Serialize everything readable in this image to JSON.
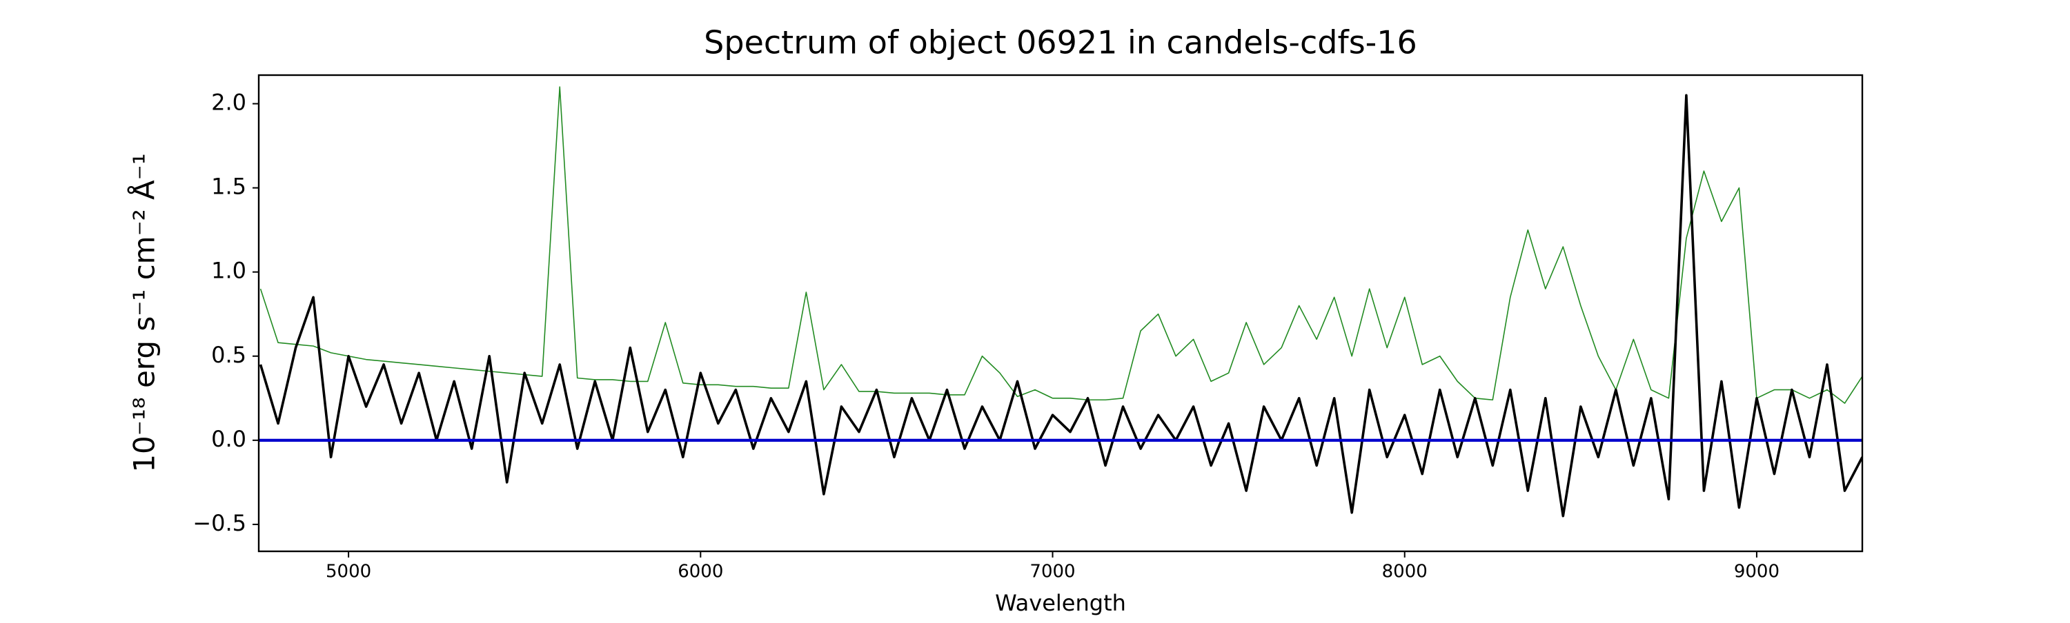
{
  "chart_data": {
    "type": "line",
    "title": "Spectrum of object 06921 in candels-cdfs-16",
    "xlabel": "Wavelength",
    "ylabel": "10⁻¹⁸ erg s⁻¹ cm⁻² Å⁻¹",
    "x": [
      4750,
      4800,
      4850,
      4900,
      4950,
      5000,
      5050,
      5100,
      5150,
      5200,
      5250,
      5300,
      5350,
      5400,
      5450,
      5500,
      5550,
      5600,
      5650,
      5700,
      5750,
      5800,
      5850,
      5900,
      5950,
      6000,
      6050,
      6100,
      6150,
      6200,
      6250,
      6300,
      6350,
      6400,
      6450,
      6500,
      6550,
      6600,
      6650,
      6700,
      6750,
      6800,
      6850,
      6900,
      6950,
      7000,
      7050,
      7100,
      7150,
      7200,
      7250,
      7300,
      7350,
      7400,
      7450,
      7500,
      7550,
      7600,
      7650,
      7700,
      7750,
      7800,
      7850,
      7900,
      7950,
      8000,
      8050,
      8100,
      8150,
      8200,
      8250,
      8300,
      8350,
      8400,
      8450,
      8500,
      8550,
      8600,
      8650,
      8700,
      8750,
      8800,
      8850,
      8900,
      8950,
      9000,
      9050,
      9100,
      9150,
      9200,
      9250,
      9300
    ],
    "series": [
      {
        "color": "#228b22",
        "width": 1.6,
        "values": [
          0.9,
          0.58,
          0.57,
          0.56,
          0.52,
          0.5,
          0.48,
          0.47,
          0.46,
          0.45,
          0.44,
          0.43,
          0.42,
          0.41,
          0.4,
          0.39,
          0.38,
          2.1,
          0.37,
          0.36,
          0.36,
          0.35,
          0.35,
          0.7,
          0.34,
          0.33,
          0.33,
          0.32,
          0.32,
          0.31,
          0.31,
          0.88,
          0.3,
          0.45,
          0.29,
          0.29,
          0.28,
          0.28,
          0.28,
          0.27,
          0.27,
          0.5,
          0.4,
          0.26,
          0.3,
          0.25,
          0.25,
          0.24,
          0.24,
          0.25,
          0.65,
          0.75,
          0.5,
          0.6,
          0.35,
          0.4,
          0.7,
          0.45,
          0.55,
          0.8,
          0.6,
          0.85,
          0.5,
          0.9,
          0.55,
          0.85,
          0.45,
          0.5,
          0.35,
          0.25,
          0.24,
          0.85,
          1.25,
          0.9,
          1.15,
          0.8,
          0.5,
          0.3,
          0.6,
          0.3,
          0.25,
          1.2,
          1.6,
          1.3,
          1.5,
          0.25,
          0.3,
          0.3,
          0.25,
          0.3,
          0.22,
          0.38
        ]
      },
      {
        "color": "#000000",
        "width": 3.6,
        "values": [
          0.45,
          0.1,
          0.55,
          0.85,
          -0.1,
          0.5,
          0.2,
          0.45,
          0.1,
          0.4,
          0.0,
          0.35,
          -0.05,
          0.5,
          -0.25,
          0.4,
          0.1,
          0.45,
          -0.05,
          0.35,
          0.0,
          0.55,
          0.05,
          0.3,
          -0.1,
          0.4,
          0.1,
          0.3,
          -0.05,
          0.25,
          0.05,
          0.35,
          -0.32,
          0.2,
          0.05,
          0.3,
          -0.1,
          0.25,
          0.0,
          0.3,
          -0.05,
          0.2,
          0.0,
          0.35,
          -0.05,
          0.15,
          0.05,
          0.25,
          -0.15,
          0.2,
          -0.05,
          0.15,
          0.0,
          0.2,
          -0.15,
          0.1,
          -0.3,
          0.2,
          0.0,
          0.25,
          -0.15,
          0.25,
          -0.43,
          0.3,
          -0.1,
          0.15,
          -0.2,
          0.3,
          -0.1,
          0.25,
          -0.15,
          0.3,
          -0.3,
          0.25,
          -0.45,
          0.2,
          -0.1,
          0.3,
          -0.15,
          0.25,
          -0.35,
          2.05,
          -0.3,
          0.35,
          -0.4,
          0.25,
          -0.2,
          0.3,
          -0.1,
          0.45,
          -0.3,
          -0.1
        ]
      },
      {
        "color": "#0000cd",
        "width": 4.2,
        "x": [
          4745,
          9300
        ],
        "values": [
          0,
          0
        ]
      }
    ],
    "xlim": [
      4745,
      9300
    ],
    "ylim": [
      -0.66,
      2.17
    ],
    "xticks": [
      5000,
      6000,
      7000,
      8000,
      9000
    ],
    "yticks": [
      {
        "value": -0.5,
        "label": "−0.5"
      },
      {
        "value": 0,
        "label": "0.0"
      },
      {
        "value": 0.5,
        "label": "0.5"
      },
      {
        "value": 1,
        "label": "1.0"
      },
      {
        "value": 1.5,
        "label": "1.5"
      },
      {
        "value": 2,
        "label": "2.0"
      }
    ],
    "grid": false
  }
}
